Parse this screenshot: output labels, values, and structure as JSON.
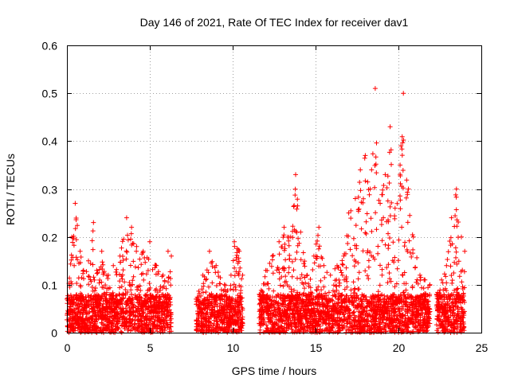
{
  "chart_data": {
    "type": "scatter",
    "title": "Day 146 of 2021, Rate Of TEC Index for receiver dav1",
    "xlabel": "GPS time / hours",
    "ylabel": "ROTI / TECUs",
    "xlim": [
      0,
      25
    ],
    "ylim": [
      0,
      0.6
    ],
    "xticks": [
      0,
      5,
      10,
      15,
      20,
      25
    ],
    "yticks": [
      0,
      0.1,
      0.2,
      0.3,
      0.4,
      0.5,
      0.6
    ],
    "xtick_labels": [
      "0",
      "5",
      "10",
      "15",
      "20",
      "25"
    ],
    "ytick_labels": [
      "0",
      "0.1",
      "0.2",
      "0.3",
      "0.4",
      "0.5",
      "0.6"
    ],
    "grid": true,
    "marker": "+",
    "marker_color": "#ff0000",
    "series": [
      {
        "name": "dav1",
        "segments": [
          [
            0,
            6.3
          ],
          [
            7.8,
            10.6
          ],
          [
            11.6,
            21.9
          ],
          [
            22.3,
            24.0
          ]
        ],
        "envelope": [
          [
            0.0,
            0.07
          ],
          [
            0.3,
            0.2
          ],
          [
            0.5,
            0.27
          ],
          [
            0.8,
            0.17
          ],
          [
            1.0,
            0.13
          ],
          [
            1.3,
            0.15
          ],
          [
            1.6,
            0.23
          ],
          [
            1.8,
            0.13
          ],
          [
            2.1,
            0.17
          ],
          [
            2.5,
            0.12
          ],
          [
            2.8,
            0.14
          ],
          [
            3.2,
            0.16
          ],
          [
            3.6,
            0.24
          ],
          [
            3.9,
            0.22
          ],
          [
            4.2,
            0.18
          ],
          [
            4.6,
            0.17
          ],
          [
            5.0,
            0.19
          ],
          [
            5.4,
            0.14
          ],
          [
            5.8,
            0.12
          ],
          [
            6.1,
            0.17
          ],
          [
            6.3,
            0.16
          ],
          [
            7.8,
            0.07
          ],
          [
            8.2,
            0.12
          ],
          [
            8.6,
            0.17
          ],
          [
            9.0,
            0.14
          ],
          [
            9.5,
            0.1
          ],
          [
            9.9,
            0.12
          ],
          [
            10.1,
            0.19
          ],
          [
            10.4,
            0.17
          ],
          [
            10.6,
            0.12
          ],
          [
            11.6,
            0.08
          ],
          [
            12.0,
            0.13
          ],
          [
            12.4,
            0.16
          ],
          [
            12.8,
            0.19
          ],
          [
            13.1,
            0.22
          ],
          [
            13.5,
            0.2
          ],
          [
            13.8,
            0.33
          ],
          [
            14.1,
            0.21
          ],
          [
            14.5,
            0.12
          ],
          [
            14.9,
            0.16
          ],
          [
            15.2,
            0.22
          ],
          [
            15.5,
            0.14
          ],
          [
            15.9,
            0.12
          ],
          [
            16.3,
            0.14
          ],
          [
            16.7,
            0.16
          ],
          [
            17.0,
            0.25
          ],
          [
            17.4,
            0.28
          ],
          [
            17.7,
            0.34
          ],
          [
            18.0,
            0.37
          ],
          [
            18.3,
            0.3
          ],
          [
            18.6,
            0.51
          ],
          [
            18.9,
            0.27
          ],
          [
            19.2,
            0.33
          ],
          [
            19.5,
            0.43
          ],
          [
            19.8,
            0.26
          ],
          [
            20.1,
            0.35
          ],
          [
            20.3,
            0.5
          ],
          [
            20.6,
            0.3
          ],
          [
            20.9,
            0.2
          ],
          [
            21.3,
            0.12
          ],
          [
            21.6,
            0.11
          ],
          [
            21.9,
            0.1
          ],
          [
            22.3,
            0.08
          ],
          [
            22.6,
            0.11
          ],
          [
            22.9,
            0.14
          ],
          [
            23.2,
            0.24
          ],
          [
            23.5,
            0.3
          ],
          [
            23.8,
            0.2
          ],
          [
            24.0,
            0.17
          ]
        ]
      }
    ]
  }
}
